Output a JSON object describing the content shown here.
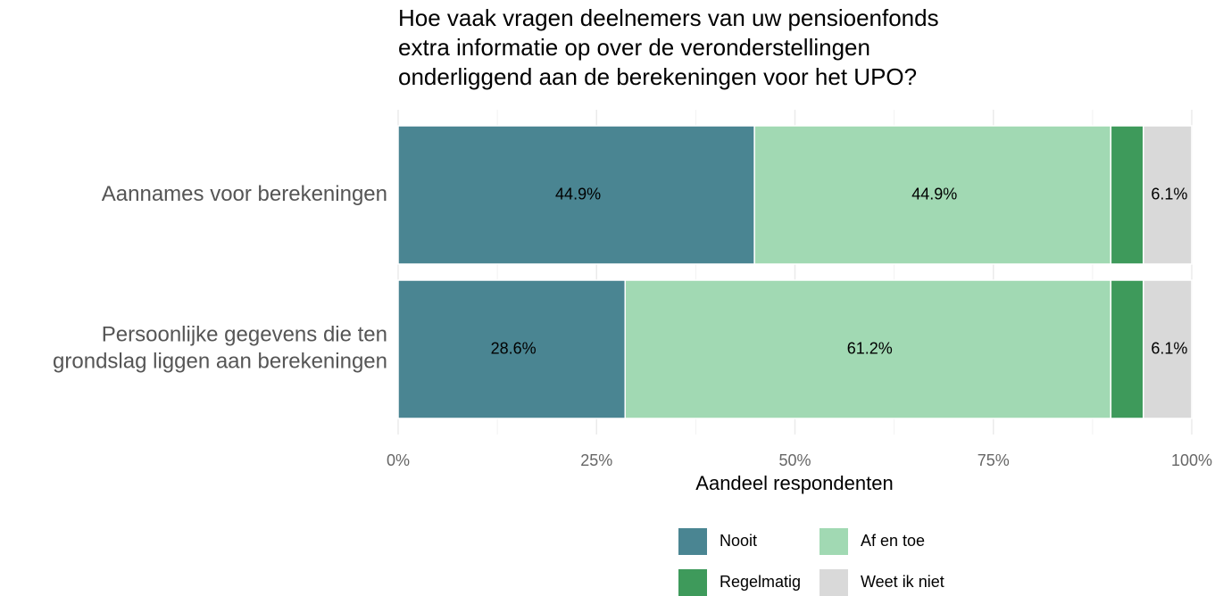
{
  "chart_data": {
    "type": "stacked-bar-horizontal",
    "title": "Hoe vaak vragen deelnemers van uw pensioenfonds\nextra informatie op over de veronderstellingen\nonderliggend aan de berekeningen voor het UPO?",
    "x_label": "Aandeel respondenten",
    "categories": [
      "Aannames voor berekeningen",
      "Persoonlijke gegevens die ten\ngrondslag liggen aan berekeningen"
    ],
    "series": [
      {
        "name": "Nooit",
        "color": "#4a8592",
        "values": [
          44.9,
          28.6
        ],
        "value_labels": [
          "44.9%",
          "28.6%"
        ]
      },
      {
        "name": "Af en toe",
        "color": "#a1d9b3",
        "values": [
          44.9,
          61.2
        ],
        "value_labels": [
          "44.9%",
          "61.2%"
        ]
      },
      {
        "name": "Regelmatig",
        "color": "#3e9a5b",
        "values": [
          4.1,
          4.1
        ]
      },
      {
        "name": "Weet ik niet",
        "color": "#d9d9d9",
        "values": [
          6.1,
          6.1
        ],
        "value_labels": [
          "6.1%",
          "6.1%"
        ]
      }
    ],
    "xlim": [
      0,
      100
    ],
    "xticks": [
      {
        "value": 0,
        "label": "0%"
      },
      {
        "value": 25,
        "label": "25%"
      },
      {
        "value": 50,
        "label": "50%"
      },
      {
        "value": 75,
        "label": "75%"
      },
      {
        "value": 100,
        "label": "100%"
      }
    ],
    "minor_xticks": [
      12.5,
      37.5,
      62.5,
      87.5
    ],
    "grid": true,
    "legend": "bottom"
  }
}
